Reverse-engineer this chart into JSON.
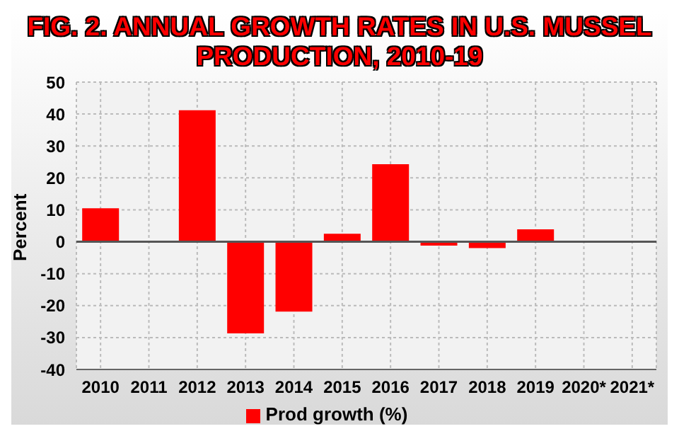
{
  "chart_data": {
    "type": "bar",
    "title": "FIG. 2. ANNUAL GROWTH RATES IN U.S. MUSSEL PRODUCTION, 2010-19",
    "ylabel": "Percent",
    "categories": [
      "2010",
      "2011",
      "2012",
      "2013",
      "2014",
      "2015",
      "2016",
      "2017",
      "2018",
      "2019",
      "2020*",
      "2021*"
    ],
    "series": [
      {
        "name": "Prod growth (%)",
        "color": "#ff0000",
        "values": [
          10.5,
          null,
          41.2,
          -28.7,
          -21.9,
          2.5,
          24.3,
          -1.2,
          -2,
          3.9,
          null,
          null
        ]
      }
    ],
    "ylim": [
      -40,
      50
    ],
    "yticks": [
      -40,
      -30,
      -20,
      -10,
      0,
      10,
      20,
      30,
      40,
      50
    ],
    "grid": true,
    "legend": "bottom"
  }
}
